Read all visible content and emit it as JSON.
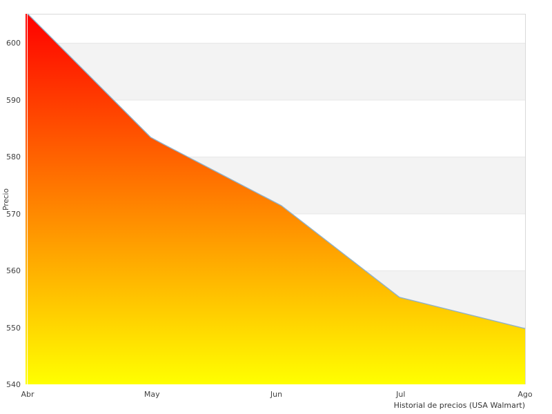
{
  "chart_data": {
    "type": "area",
    "title": "",
    "xlabel": "Historial de precios (USA Walmart)",
    "ylabel": "Precio",
    "x_tick_labels": [
      "Abr",
      "May",
      "Jun",
      "Jul",
      "Ago"
    ],
    "y_tick_values": [
      540,
      550,
      560,
      570,
      580,
      590,
      600
    ],
    "y_gridline_values": [
      550,
      560,
      570,
      580,
      590,
      600
    ],
    "ylim": [
      540,
      605.1
    ],
    "xlim_months": [
      0,
      4
    ],
    "grid_bands_y": [
      [
        550,
        560
      ],
      [
        570,
        580
      ],
      [
        590,
        600
      ]
    ],
    "series": [
      {
        "name": "Precio",
        "points": [
          {
            "month": 0.0,
            "value": 605.1
          },
          {
            "month": 0.99,
            "value": 583.4
          },
          {
            "month": 1.1,
            "value": 582.1
          },
          {
            "month": 2.04,
            "value": 571.4
          },
          {
            "month": 2.99,
            "value": 555.3
          },
          {
            "month": 4.0,
            "value": 549.8
          }
        ]
      }
    ],
    "legend": "none",
    "grid": "horizontal-bands",
    "colors": {
      "area_gradient_top": "#ff0000",
      "area_gradient_bottom": "#ffff00",
      "line": "#8fb1c9",
      "band_fill": "#f3f3f3",
      "gridline": "#e7e7e7",
      "plot_border": "#d9d9d9",
      "left_divider": "#ffffff",
      "tick_text": "#3f3f3f",
      "footer_text": "#333333"
    }
  }
}
